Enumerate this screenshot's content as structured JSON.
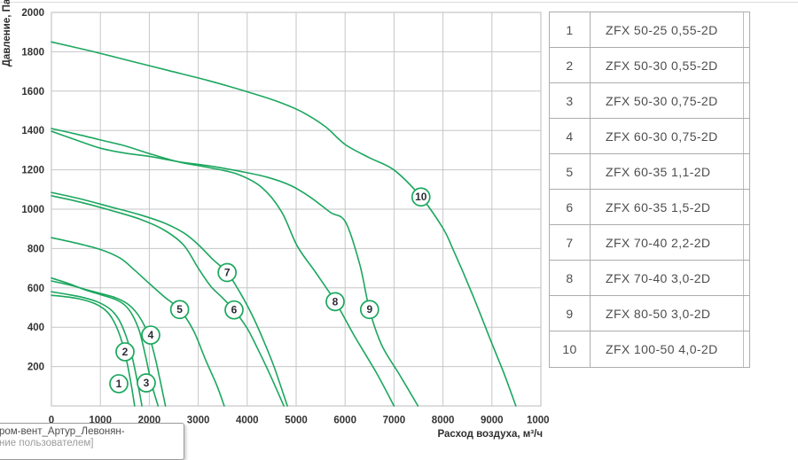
{
  "chart_data": {
    "type": "line",
    "title": "",
    "xlabel": "Расход воздуха, м³/ч",
    "ylabel": "Давление, Па",
    "xlim": [
      0,
      10000
    ],
    "ylim": [
      0,
      2000
    ],
    "x_ticks": [
      "0",
      "1000",
      "2000",
      "3000",
      "4000",
      "5000",
      "6000",
      "7000",
      "8000",
      "9000",
      "10000"
    ],
    "y_ticks": [
      "200",
      "400",
      "600",
      "800",
      "1000",
      "1200",
      "1400",
      "1600",
      "1800",
      "2000"
    ],
    "grid": true,
    "legend_position": "right-table",
    "curve_color": "#1ba75e",
    "grid_color": "#c6c6c8",
    "series": [
      {
        "id": "1",
        "name": "ZFX 50-25 0,55-2D",
        "label_at": [
          1377,
          113
        ],
        "points": [
          [
            0,
            562
          ],
          [
            250,
            556
          ],
          [
            550,
            545
          ],
          [
            850,
            524
          ],
          [
            1050,
            497
          ],
          [
            1200,
            460
          ],
          [
            1330,
            402
          ],
          [
            1450,
            318
          ],
          [
            1550,
            213
          ],
          [
            1630,
            108
          ],
          [
            1700,
            0
          ]
        ]
      },
      {
        "id": "2",
        "name": "ZFX 50-30 0,55-2D",
        "label_at": [
          1504,
          275
        ],
        "points": [
          [
            0,
            580
          ],
          [
            300,
            568
          ],
          [
            650,
            551
          ],
          [
            950,
            528
          ],
          [
            1200,
            492
          ],
          [
            1380,
            438
          ],
          [
            1520,
            358
          ],
          [
            1650,
            248
          ],
          [
            1760,
            118
          ],
          [
            1850,
            0
          ]
        ]
      },
      {
        "id": "3",
        "name": "ZFX 50-30 0,75-2D",
        "label_at": [
          1938,
          117
        ],
        "points": [
          [
            0,
            650
          ],
          [
            350,
            622
          ],
          [
            700,
            589
          ],
          [
            1000,
            566
          ],
          [
            1300,
            542
          ],
          [
            1500,
            512
          ],
          [
            1650,
            464
          ],
          [
            1800,
            378
          ],
          [
            1920,
            256
          ],
          [
            2050,
            108
          ],
          [
            2180,
            0
          ]
        ]
      },
      {
        "id": "4",
        "name": "ZFX 60-30 0,75-2D",
        "label_at": [
          2029,
          360
        ],
        "points": [
          [
            0,
            635
          ],
          [
            350,
            616
          ],
          [
            700,
            592
          ],
          [
            1000,
            572
          ],
          [
            1300,
            551
          ],
          [
            1550,
            520
          ],
          [
            1750,
            470
          ],
          [
            1920,
            398
          ],
          [
            2030,
            328
          ],
          [
            2150,
            212
          ],
          [
            2330,
            0
          ]
        ]
      },
      {
        "id": "5",
        "name": "ZFX 60-35 1,1-2D",
        "label_at": [
          2620,
          490
        ],
        "points": [
          [
            0,
            855
          ],
          [
            500,
            828
          ],
          [
            1000,
            795
          ],
          [
            1400,
            752
          ],
          [
            1700,
            690
          ],
          [
            2000,
            622
          ],
          [
            2300,
            556
          ],
          [
            2620,
            490
          ],
          [
            2900,
            384
          ],
          [
            3150,
            234
          ],
          [
            3380,
            104
          ],
          [
            3530,
            0
          ]
        ]
      },
      {
        "id": "6",
        "name": "ZFX 60-35 1,5-2D",
        "label_at": [
          3732,
          488
        ],
        "points": [
          [
            0,
            1068
          ],
          [
            600,
            1035
          ],
          [
            1200,
            995
          ],
          [
            1800,
            950
          ],
          [
            2300,
            894
          ],
          [
            2700,
            818
          ],
          [
            3000,
            700
          ],
          [
            3250,
            610
          ],
          [
            3500,
            548
          ],
          [
            3730,
            488
          ],
          [
            4000,
            394
          ],
          [
            4200,
            298
          ],
          [
            4450,
            168
          ],
          [
            4750,
            0
          ]
        ]
      },
      {
        "id": "7",
        "name": "ZFX 70-40 2,2-2D",
        "label_at": [
          3590,
          678
        ],
        "points": [
          [
            0,
            1085
          ],
          [
            600,
            1052
          ],
          [
            1200,
            1012
          ],
          [
            1800,
            972
          ],
          [
            2300,
            930
          ],
          [
            2700,
            880
          ],
          [
            3000,
            820
          ],
          [
            3300,
            744
          ],
          [
            3590,
            678
          ],
          [
            3850,
            578
          ],
          [
            4100,
            462
          ],
          [
            4300,
            352
          ],
          [
            4550,
            198
          ],
          [
            4820,
            0
          ]
        ]
      },
      {
        "id": "8",
        "name": "ZFX 70-40 3,0-2D",
        "label_at": [
          5797,
          530
        ],
        "points": [
          [
            0,
            1410
          ],
          [
            500,
            1382
          ],
          [
            1000,
            1352
          ],
          [
            1500,
            1322
          ],
          [
            2030,
            1280
          ],
          [
            2600,
            1240
          ],
          [
            3200,
            1212
          ],
          [
            3800,
            1178
          ],
          [
            4300,
            1110
          ],
          [
            4700,
            988
          ],
          [
            5020,
            814
          ],
          [
            5400,
            678
          ],
          [
            5800,
            530
          ],
          [
            6200,
            352
          ],
          [
            6650,
            164
          ],
          [
            7000,
            0
          ]
        ]
      },
      {
        "id": "9",
        "name": "ZFX 80-50 3,0-2D",
        "label_at": [
          6500,
          490
        ],
        "points": [
          [
            0,
            1396
          ],
          [
            500,
            1352
          ],
          [
            1000,
            1310
          ],
          [
            1500,
            1285
          ],
          [
            2030,
            1267
          ],
          [
            2600,
            1241
          ],
          [
            3200,
            1221
          ],
          [
            3800,
            1195
          ],
          [
            4400,
            1163
          ],
          [
            4900,
            1119
          ],
          [
            5300,
            1059
          ],
          [
            5700,
            984
          ],
          [
            6010,
            934
          ],
          [
            6300,
            718
          ],
          [
            6500,
            488
          ],
          [
            6750,
            308
          ],
          [
            7100,
            164
          ],
          [
            7490,
            0
          ]
        ]
      },
      {
        "id": "10",
        "name": "ZFX 100-50 4,0-2D",
        "label_at": [
          7550,
          1062
        ],
        "points": [
          [
            0,
            1850
          ],
          [
            800,
            1804
          ],
          [
            1600,
            1754
          ],
          [
            2400,
            1704
          ],
          [
            3200,
            1654
          ],
          [
            4000,
            1597
          ],
          [
            4600,
            1549
          ],
          [
            5100,
            1497
          ],
          [
            5600,
            1419
          ],
          [
            6000,
            1329
          ],
          [
            6500,
            1261
          ],
          [
            7000,
            1199
          ],
          [
            7550,
            1062
          ],
          [
            8000,
            903
          ],
          [
            8200,
            799
          ],
          [
            8600,
            568
          ],
          [
            9000,
            317
          ],
          [
            9250,
            163
          ],
          [
            9490,
            0
          ]
        ]
      }
    ]
  },
  "tooltip": {
    "line1": "ром-вент_Артур_Левонян-",
    "line2": "ние пользователем]"
  },
  "colors": {
    "curve": "#1ba75e",
    "grid": "#c6c6c8",
    "axis_text": "#333333",
    "badge_text": "#2c2c34",
    "table_border": "#acacac",
    "table_text": "#4e4e4e"
  }
}
